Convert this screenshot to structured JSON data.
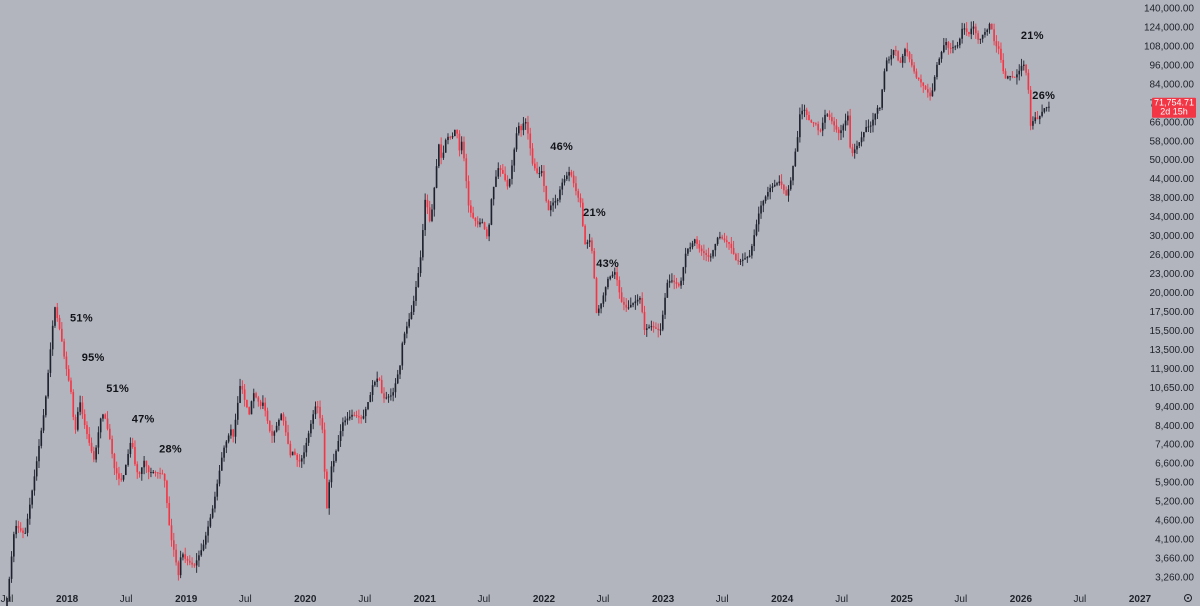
{
  "chart_data": {
    "type": "candlestick",
    "title": "",
    "xlabel": "",
    "ylabel": "",
    "y_scale": "log",
    "ylim": [
      3100,
      140000
    ],
    "grid": false,
    "colors": {
      "up": "#1e222d",
      "down": "#f23645",
      "background": "#b2b5be",
      "badge": "#f23645"
    },
    "y_ticks": [
      "140,000.00",
      "124,000.00",
      "108,000.00",
      "96,000.00",
      "84,000.00",
      "74,000.00",
      "66,000.00",
      "58,000.00",
      "50,000.00",
      "44,000.00",
      "38,000.00",
      "34,000.00",
      "30,000.00",
      "26,000.00",
      "23,000.00",
      "20,000.00",
      "17,500.00",
      "15,500.00",
      "13,500.00",
      "11,900.00",
      "10,650.00",
      "9,400.00",
      "8,400.00",
      "7,400.00",
      "6,600.00",
      "5,900.00",
      "5,200.00",
      "4,600.00",
      "4,100.00",
      "3,660.00",
      "3,260.00"
    ],
    "x_ticks": [
      {
        "label": "Jul",
        "date": "2017-07",
        "bold": false
      },
      {
        "label": "2018",
        "date": "2018-01",
        "bold": true
      },
      {
        "label": "Jul",
        "date": "2018-07",
        "bold": false
      },
      {
        "label": "2019",
        "date": "2019-01",
        "bold": true
      },
      {
        "label": "Jul",
        "date": "2019-07",
        "bold": false
      },
      {
        "label": "2020",
        "date": "2020-01",
        "bold": true
      },
      {
        "label": "Jul",
        "date": "2020-07",
        "bold": false
      },
      {
        "label": "2021",
        "date": "2021-01",
        "bold": true
      },
      {
        "label": "Jul",
        "date": "2021-07",
        "bold": false
      },
      {
        "label": "2022",
        "date": "2022-01",
        "bold": true
      },
      {
        "label": "Jul",
        "date": "2022-07",
        "bold": false
      },
      {
        "label": "2023",
        "date": "2023-01",
        "bold": true
      },
      {
        "label": "Jul",
        "date": "2023-07",
        "bold": false
      },
      {
        "label": "2024",
        "date": "2024-01",
        "bold": true
      },
      {
        "label": "Jul",
        "date": "2024-07",
        "bold": false
      },
      {
        "label": "2025",
        "date": "2025-01",
        "bold": true
      },
      {
        "label": "Jul",
        "date": "2025-07",
        "bold": false
      },
      {
        "label": "2026",
        "date": "2026-01",
        "bold": true
      },
      {
        "label": "Jul",
        "date": "2026-07",
        "bold": false
      },
      {
        "label": "2027",
        "date": "2027-01",
        "bold": true
      }
    ],
    "price_path": [
      [
        "2017-07",
        2400
      ],
      [
        "2017-08",
        4600
      ],
      [
        "2017-09",
        4300
      ],
      [
        "2017-10",
        6400
      ],
      [
        "2017-11",
        10000
      ],
      [
        "2017-12",
        19400
      ],
      [
        "2017-12-20",
        16000
      ],
      [
        "2018-01",
        13500
      ],
      [
        "2018-01-20",
        11000
      ],
      [
        "2018-02",
        8300
      ],
      [
        "2018-02-15",
        10500
      ],
      [
        "2018-03",
        9000
      ],
      [
        "2018-03-15",
        8000
      ],
      [
        "2018-04",
        7000
      ],
      [
        "2018-04-20",
        9200
      ],
      [
        "2018-05",
        9600
      ],
      [
        "2018-05-20",
        8000
      ],
      [
        "2018-06",
        6700
      ],
      [
        "2018-06-20",
        6100
      ],
      [
        "2018-07",
        6400
      ],
      [
        "2018-07-25",
        8200
      ],
      [
        "2018-08",
        7000
      ],
      [
        "2018-08-15",
        6300
      ],
      [
        "2018-09",
        7000
      ],
      [
        "2018-09-15",
        6500
      ],
      [
        "2018-10",
        6500
      ],
      [
        "2018-11",
        6400
      ],
      [
        "2018-11-20",
        4300
      ],
      [
        "2018-12",
        3900
      ],
      [
        "2018-12-15",
        3300
      ],
      [
        "2018-12-25",
        3900
      ],
      [
        "2019-01",
        3700
      ],
      [
        "2019-02",
        3500
      ],
      [
        "2019-03",
        4000
      ],
      [
        "2019-04",
        5200
      ],
      [
        "2019-05",
        7500
      ],
      [
        "2019-05-25",
        8600
      ],
      [
        "2019-06",
        8200
      ],
      [
        "2019-06-25",
        12000
      ],
      [
        "2019-07",
        10800
      ],
      [
        "2019-07-20",
        9500
      ],
      [
        "2019-08",
        11000
      ],
      [
        "2019-08-25",
        10000
      ],
      [
        "2019-09",
        10300
      ],
      [
        "2019-09-25",
        8200
      ],
      [
        "2019-10",
        8300
      ],
      [
        "2019-10-26",
        9500
      ],
      [
        "2019-11",
        9200
      ],
      [
        "2019-11-25",
        7100
      ],
      [
        "2019-12",
        7500
      ],
      [
        "2019-12-18",
        6900
      ],
      [
        "2020-01",
        7200
      ],
      [
        "2020-02",
        9500
      ],
      [
        "2020-02-12",
        10300
      ],
      [
        "2020-03",
        8500
      ],
      [
        "2020-03-13",
        5000
      ],
      [
        "2020-03-25",
        6700
      ],
      [
        "2020-04",
        6800
      ],
      [
        "2020-05",
        9000
      ],
      [
        "2020-06",
        9500
      ],
      [
        "2020-07",
        9200
      ],
      [
        "2020-07-28",
        11000
      ],
      [
        "2020-08",
        11500
      ],
      [
        "2020-08-20",
        12200
      ],
      [
        "2020-09",
        10500
      ],
      [
        "2020-10",
        10800
      ],
      [
        "2020-10-25",
        13200
      ],
      [
        "2020-11",
        15500
      ],
      [
        "2020-12",
        19000
      ],
      [
        "2020-12-25",
        26000
      ],
      [
        "2021-01",
        31000
      ],
      [
        "2021-01-10",
        40000
      ],
      [
        "2021-01-25",
        33000
      ],
      [
        "2021-02",
        38000
      ],
      [
        "2021-02-20",
        56000
      ],
      [
        "2021-03",
        50000
      ],
      [
        "2021-03-15",
        59000
      ],
      [
        "2021-04",
        58500
      ],
      [
        "2021-04-14",
        63000
      ],
      [
        "2021-04-25",
        53000
      ],
      [
        "2021-05",
        57000
      ],
      [
        "2021-05-12",
        48000
      ],
      [
        "2021-05-20",
        38000
      ],
      [
        "2021-06",
        35000
      ],
      [
        "2021-06-20",
        33000
      ],
      [
        "2021-07",
        34000
      ],
      [
        "2021-07-20",
        30000
      ],
      [
        "2021-08",
        40000
      ],
      [
        "2021-08-20",
        48000
      ],
      [
        "2021-09",
        47000
      ],
      [
        "2021-09-20",
        42000
      ],
      [
        "2021-10",
        48000
      ],
      [
        "2021-10-20",
        64000
      ],
      [
        "2021-11",
        61000
      ],
      [
        "2021-11-10",
        67000
      ],
      [
        "2021-11-25",
        57000
      ],
      [
        "2021-12",
        50000
      ],
      [
        "2021-12-20",
        46000
      ],
      [
        "2022-01",
        47000
      ],
      [
        "2022-01-20",
        36000
      ],
      [
        "2022-02",
        38000
      ],
      [
        "2022-02-20",
        39000
      ],
      [
        "2022-03",
        43000
      ],
      [
        "2022-03-28",
        47000
      ],
      [
        "2022-04",
        46000
      ],
      [
        "2022-04-20",
        40000
      ],
      [
        "2022-05",
        38000
      ],
      [
        "2022-05-12",
        29000
      ],
      [
        "2022-06",
        30000
      ],
      [
        "2022-06-15",
        21000
      ],
      [
        "2022-06-18",
        18500
      ],
      [
        "2022-07",
        19500
      ],
      [
        "2022-07-25",
        23500
      ],
      [
        "2022-08",
        23500
      ],
      [
        "2022-08-15",
        24300
      ],
      [
        "2022-09",
        20000
      ],
      [
        "2022-09-20",
        19000
      ],
      [
        "2022-10",
        19500
      ],
      [
        "2022-11",
        20500
      ],
      [
        "2022-11-10",
        16500
      ],
      [
        "2022-12",
        17000
      ],
      [
        "2022-12-25",
        16500
      ],
      [
        "2023-01",
        16600
      ],
      [
        "2023-01-20",
        22500
      ],
      [
        "2023-02",
        23000
      ],
      [
        "2023-03",
        22000
      ],
      [
        "2023-03-20",
        28000
      ],
      [
        "2023-04",
        28500
      ],
      [
        "2023-04-15",
        30000
      ],
      [
        "2023-05",
        28000
      ],
      [
        "2023-06",
        26500
      ],
      [
        "2023-06-25",
        30500
      ],
      [
        "2023-07",
        30500
      ],
      [
        "2023-08",
        29000
      ],
      [
        "2023-08-20",
        26000
      ],
      [
        "2023-09",
        26000
      ],
      [
        "2023-10",
        27000
      ],
      [
        "2023-10-25",
        34500
      ],
      [
        "2023-11",
        37000
      ],
      [
        "2023-12",
        42000
      ],
      [
        "2024-01",
        44000
      ],
      [
        "2024-01-20",
        40000
      ],
      [
        "2024-02",
        43000
      ],
      [
        "2024-02-28",
        62000
      ],
      [
        "2024-03",
        68000
      ],
      [
        "2024-03-14",
        71000
      ],
      [
        "2024-04",
        65000
      ],
      [
        "2024-04-20",
        64000
      ],
      [
        "2024-05",
        60000
      ],
      [
        "2024-05-20",
        69000
      ],
      [
        "2024-06",
        67000
      ],
      [
        "2024-06-25",
        61000
      ],
      [
        "2024-07",
        60000
      ],
      [
        "2024-07-28",
        68000
      ],
      [
        "2024-08",
        58000
      ],
      [
        "2024-08-05",
        52000
      ],
      [
        "2024-09",
        57000
      ],
      [
        "2024-09-25",
        64000
      ],
      [
        "2024-10",
        62000
      ],
      [
        "2024-10-28",
        72000
      ],
      [
        "2024-11",
        70000
      ],
      [
        "2024-11-20",
        97000
      ],
      [
        "2024-12",
        98000
      ],
      [
        "2024-12-18",
        106000
      ],
      [
        "2025-01",
        94000
      ],
      [
        "2025-01-20",
        106000
      ],
      [
        "2025-02",
        98000
      ],
      [
        "2025-02-28",
        84000
      ],
      [
        "2025-03",
        86000
      ],
      [
        "2025-04",
        78000
      ],
      [
        "2025-04-08",
        76000
      ],
      [
        "2025-04-25",
        94000
      ],
      [
        "2025-05",
        97000
      ],
      [
        "2025-05-22",
        111000
      ],
      [
        "2025-06",
        105000
      ],
      [
        "2025-06-25",
        107000
      ],
      [
        "2025-07",
        108000
      ],
      [
        "2025-07-14",
        122000
      ],
      [
        "2025-08",
        115000
      ],
      [
        "2025-08-14",
        123000
      ],
      [
        "2025-09",
        110000
      ],
      [
        "2025-09-15",
        116000
      ],
      [
        "2025-10",
        120000
      ],
      [
        "2025-10-06",
        126000
      ],
      [
        "2025-10-20",
        108000
      ],
      [
        "2025-11",
        105000
      ],
      [
        "2025-11-20",
        86000
      ],
      [
        "2025-12",
        88000
      ],
      [
        "2025-12-20",
        87000
      ],
      [
        "2026-01",
        90000
      ],
      [
        "2026-01-15",
        96000
      ],
      [
        "2026-01-28",
        87000
      ],
      [
        "2026-02",
        78000
      ],
      [
        "2026-02-06",
        63000
      ],
      [
        "2026-02-20",
        67000
      ],
      [
        "2026-03",
        66000
      ],
      [
        "2026-03-20",
        71000
      ],
      [
        "2026-03-31",
        71754
      ]
    ],
    "annotations": [
      {
        "text": "51%",
        "date": "2018-01-10",
        "price": 17500
      },
      {
        "text": "95%",
        "date": "2018-02-15",
        "price": 13500
      },
      {
        "text": "51%",
        "date": "2018-05-01",
        "price": 11000
      },
      {
        "text": "47%",
        "date": "2018-07-18",
        "price": 9000
      },
      {
        "text": "28%",
        "date": "2018-10-10",
        "price": 7400
      },
      {
        "text": "46%",
        "date": "2022-01-20",
        "price": 54000
      },
      {
        "text": "21%",
        "date": "2022-05-01",
        "price": 35000
      },
      {
        "text": "43%",
        "date": "2022-06-10",
        "price": 25000
      },
      {
        "text": "21%",
        "date": "2026-01-01",
        "price": 112000
      },
      {
        "text": "26%",
        "date": "2026-02-05",
        "price": 75500
      }
    ],
    "last_price": {
      "value": "71,754.71",
      "countdown": "2d 15h"
    }
  }
}
